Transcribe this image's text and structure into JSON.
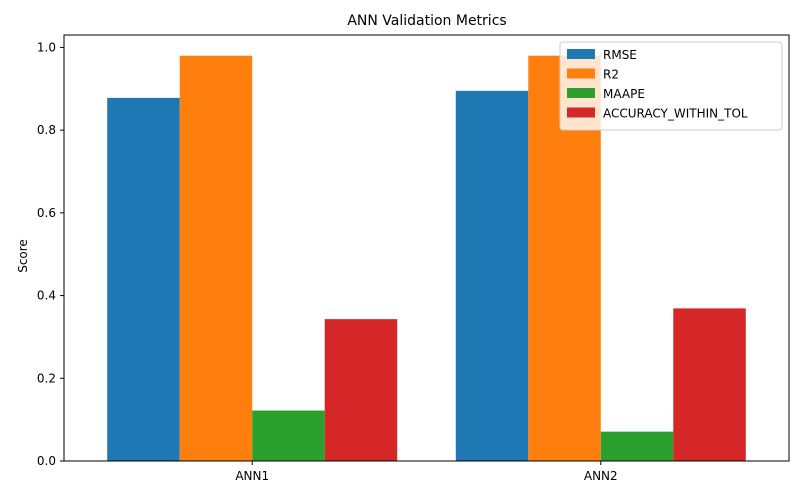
{
  "chart_data": {
    "type": "bar",
    "title": "ANN Validation Metrics",
    "xlabel": "",
    "ylabel": "Score",
    "categories": [
      "ANN1",
      "ANN2"
    ],
    "series": [
      {
        "name": "RMSE",
        "values": [
          0.878,
          0.895
        ],
        "color": "#1f77b4"
      },
      {
        "name": "R2",
        "values": [
          0.98,
          0.98
        ],
        "color": "#ff7f0e"
      },
      {
        "name": "MAAPE",
        "values": [
          0.122,
          0.071
        ],
        "color": "#2ca02c"
      },
      {
        "name": "ACCURACY_WITHIN_TOL",
        "values": [
          0.343,
          0.369
        ],
        "color": "#d62728"
      }
    ],
    "ylim": [
      0,
      1.03
    ],
    "yticks": [
      "0.0",
      "0.2",
      "0.4",
      "0.6",
      "0.8",
      "1.0"
    ],
    "grid": false,
    "legend_position": "top-right"
  }
}
